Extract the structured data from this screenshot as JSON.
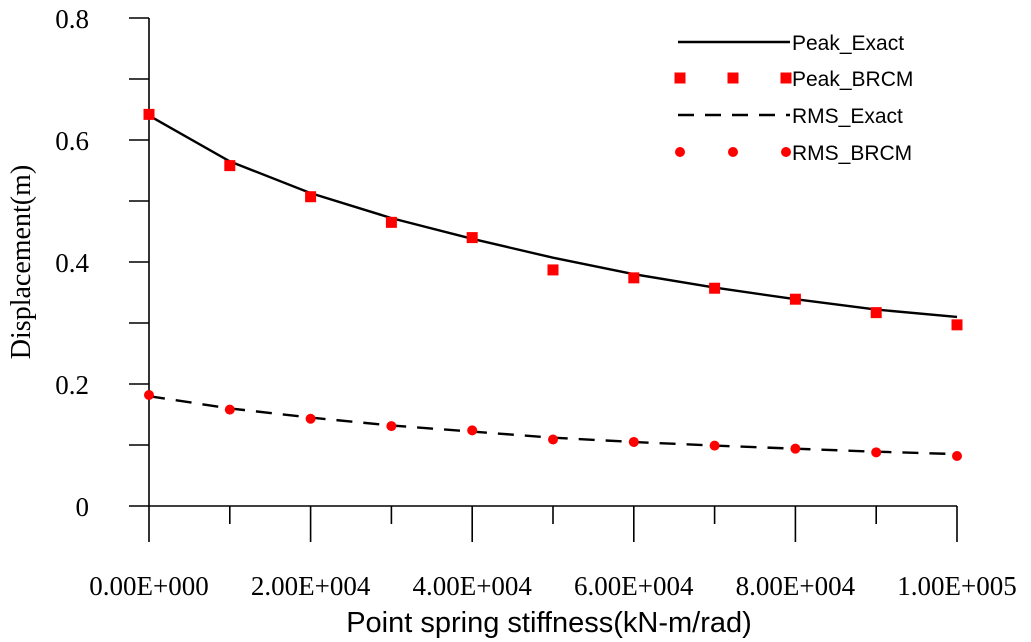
{
  "chart_data": {
    "type": "line",
    "xlabel": "Point spring stiffness(kN-m/rad)",
    "ylabel": "Displacement(m)",
    "xlim": [
      0,
      100000
    ],
    "ylim": [
      0,
      0.8
    ],
    "xticks": [
      0,
      20000,
      40000,
      60000,
      80000,
      100000
    ],
    "xtick_labels": [
      "0.00E+000",
      "2.00E+004",
      "4.00E+004",
      "6.00E+004",
      "8.00E+004",
      "1.00E+005"
    ],
    "xminor_ticks": [
      10000,
      30000,
      50000,
      70000,
      90000
    ],
    "yticks": [
      0,
      0.2,
      0.4,
      0.6,
      0.8
    ],
    "ytick_labels": [
      "0",
      "0.2",
      "0.4",
      "0.6",
      "0.8"
    ],
    "yminor_ticks": [
      0.1,
      0.3,
      0.5,
      0.7
    ],
    "grid": false,
    "legend_position": "top-right",
    "x": [
      0,
      10000,
      20000,
      30000,
      40000,
      50000,
      60000,
      70000,
      80000,
      90000,
      100000
    ],
    "series": [
      {
        "name": "Peak_Exact",
        "style": "solid-line",
        "color": "#000000",
        "values": [
          0.64,
          0.565,
          0.513,
          0.472,
          0.438,
          0.407,
          0.38,
          0.358,
          0.339,
          0.322,
          0.31
        ]
      },
      {
        "name": "Peak_BRCM",
        "style": "square-marker",
        "color": "#ff0000",
        "values": [
          0.642,
          0.558,
          0.507,
          0.465,
          0.44,
          0.387,
          0.374,
          0.357,
          0.339,
          0.317,
          0.297
        ]
      },
      {
        "name": "RMS_Exact",
        "style": "dashed-line",
        "color": "#000000",
        "values": [
          0.18,
          0.16,
          0.145,
          0.132,
          0.122,
          0.112,
          0.105,
          0.099,
          0.094,
          0.089,
          0.085
        ]
      },
      {
        "name": "RMS_BRCM",
        "style": "circle-marker",
        "color": "#ff0000",
        "values": [
          0.182,
          0.158,
          0.143,
          0.131,
          0.124,
          0.109,
          0.105,
          0.099,
          0.094,
          0.088,
          0.082
        ]
      }
    ]
  }
}
